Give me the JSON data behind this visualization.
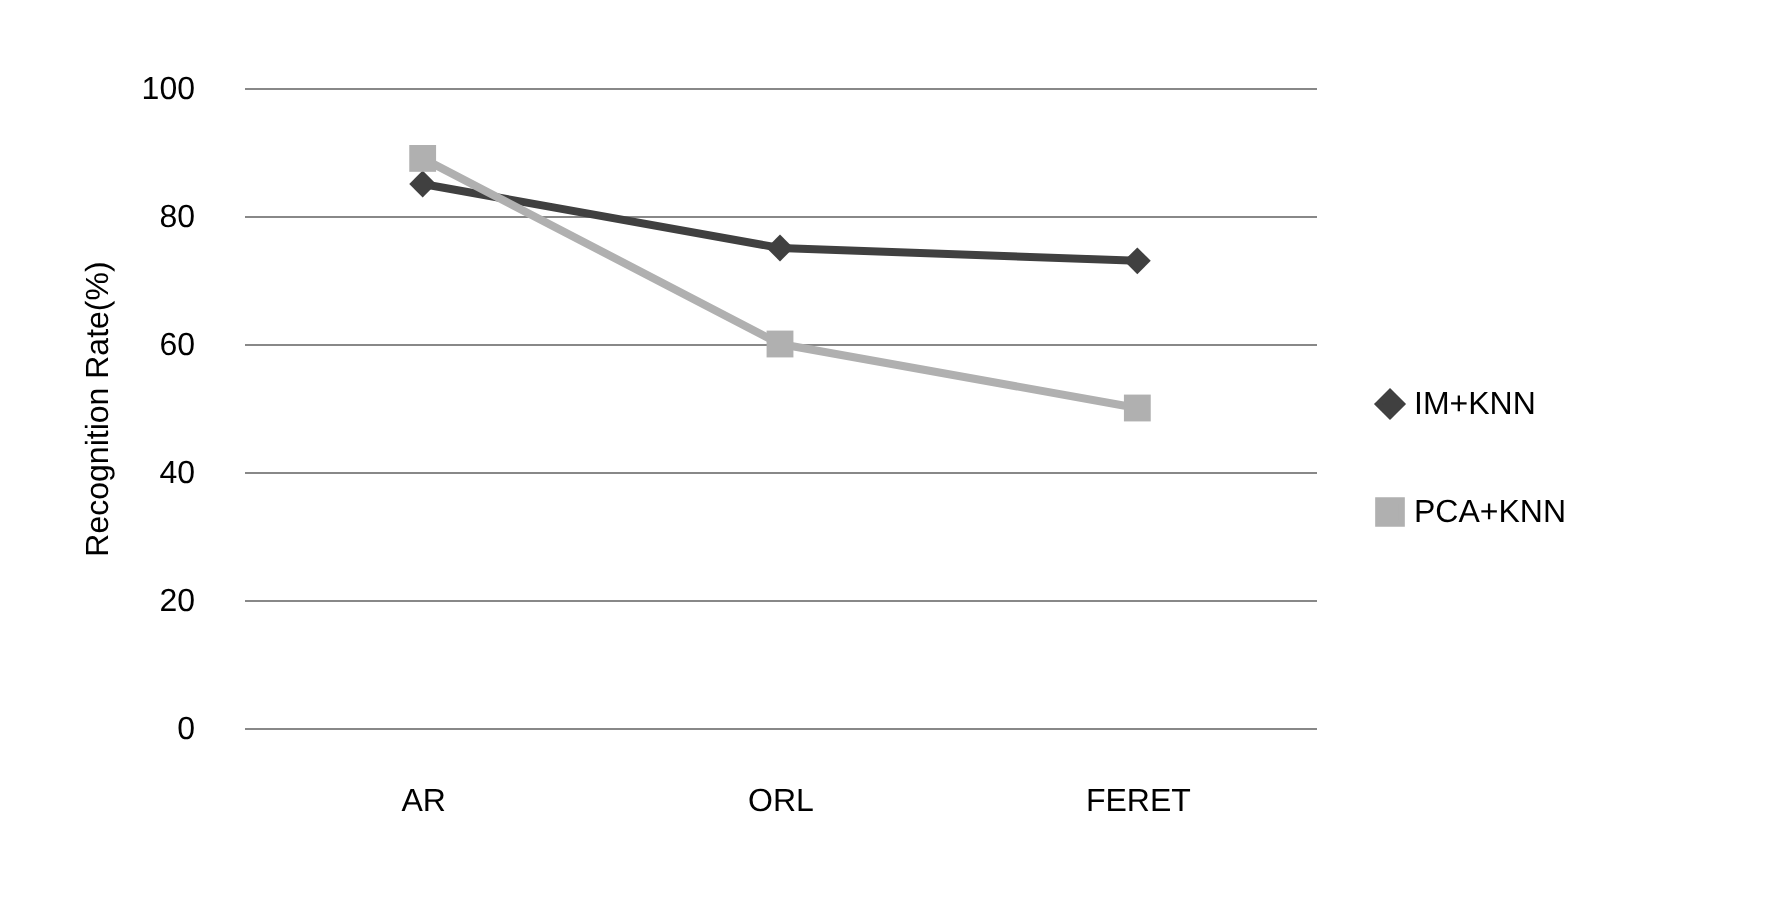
{
  "chart_data": {
    "type": "line",
    "ylabel": "Recognition Rate(%)",
    "categories": [
      "AR",
      "ORL",
      "FERET"
    ],
    "series": [
      {
        "name": "IM+KNN",
        "color": "#404040",
        "marker": "diamond",
        "values": [
          85,
          75,
          73
        ]
      },
      {
        "name": "PCA+KNN",
        "color": "#b0b0b0",
        "marker": "square",
        "values": [
          89,
          60,
          50
        ]
      }
    ],
    "ylim": [
      0,
      100
    ],
    "yticks": [
      0,
      20,
      40,
      60,
      80,
      100
    ],
    "grid": "y",
    "legend": "right"
  }
}
